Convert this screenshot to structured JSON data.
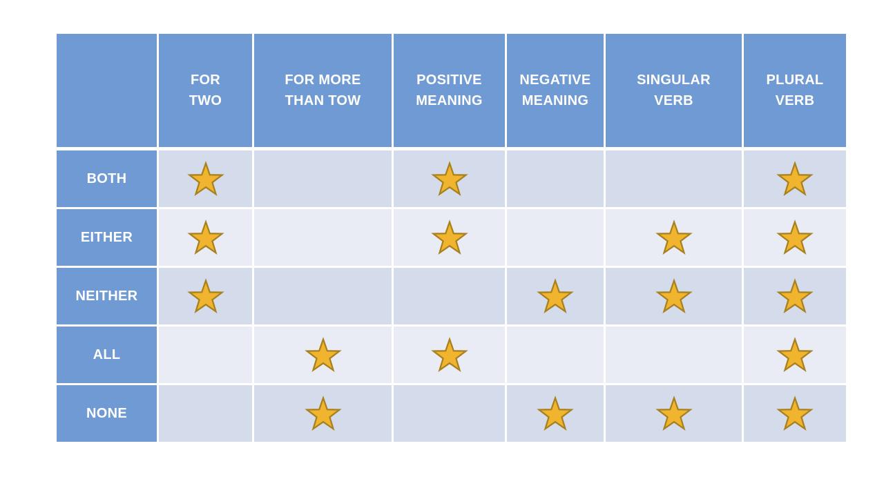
{
  "slide": {
    "background": "#FFFFFF"
  },
  "table": {
    "header_fill": "#6F9AD3",
    "row_label_fill": "#6F9AD3",
    "band_dark": "#D4DBEA",
    "band_light": "#E9ECF5",
    "grid_line_color": "#FFFFFF",
    "header_text_color": "#FFFFFF",
    "star": {
      "icon": "star-icon",
      "fill": "#F0B42E",
      "stroke": "#A8811F"
    },
    "columns": [
      {
        "id": "for-two",
        "label": "FOR\nTWO"
      },
      {
        "id": "for-more-than-tow",
        "label": "FOR MORE\nTHAN TOW"
      },
      {
        "id": "positive-meaning",
        "label": "POSITIVE\nMEANING"
      },
      {
        "id": "negative-meaning",
        "label": "NEGATIVE\nMEANING"
      },
      {
        "id": "singular-verb",
        "label": "SINGULAR\nVERB"
      },
      {
        "id": "plural-verb",
        "label": "PLURAL\nVERB"
      }
    ],
    "rows": [
      {
        "id": "both",
        "label": "BOTH",
        "stars": [
          1,
          0,
          1,
          0,
          0,
          1
        ]
      },
      {
        "id": "either",
        "label": "EITHER",
        "stars": [
          1,
          0,
          1,
          0,
          1,
          1
        ]
      },
      {
        "id": "neither",
        "label": "NEITHER",
        "stars": [
          1,
          0,
          0,
          1,
          1,
          1
        ]
      },
      {
        "id": "all",
        "label": "ALL",
        "stars": [
          0,
          1,
          1,
          0,
          0,
          1
        ]
      },
      {
        "id": "none",
        "label": "NONE",
        "stars": [
          0,
          1,
          0,
          1,
          1,
          1
        ]
      }
    ]
  },
  "chart_data": {
    "type": "table",
    "title": "",
    "columns": [
      "FOR TWO",
      "FOR MORE THAN TOW",
      "POSITIVE MEANING",
      "NEGATIVE MEANING",
      "SINGULAR VERB",
      "PLURAL VERB"
    ],
    "row_headers": [
      "BOTH",
      "EITHER",
      "NEITHER",
      "ALL",
      "NONE"
    ],
    "cell_marker": "gold-star",
    "matrix": [
      [
        1,
        0,
        1,
        0,
        0,
        1
      ],
      [
        1,
        0,
        1,
        0,
        1,
        1
      ],
      [
        1,
        0,
        0,
        1,
        1,
        1
      ],
      [
        0,
        1,
        1,
        0,
        0,
        1
      ],
      [
        0,
        1,
        0,
        1,
        1,
        1
      ]
    ]
  }
}
